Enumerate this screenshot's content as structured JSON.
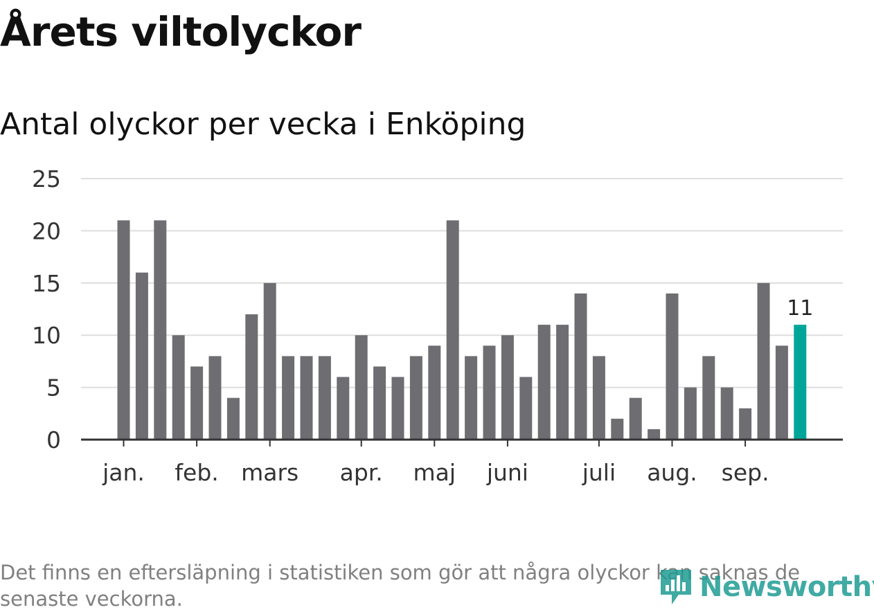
{
  "title": "Årets viltolyckor",
  "subtitle": "Antal olyckor per vecka i Enköping",
  "footnote": "Det finns en eftersläpning i statistiken som gör att några olyckor kan saknas de senaste veckorna.",
  "brand": {
    "name": "Newsworthy",
    "icon": "newsworthy-logo-icon",
    "color": "#1f9c93"
  },
  "colors": {
    "bar": "#6e6d72",
    "highlight": "#00a59a",
    "grid": "#dddddd",
    "axis": "#333333"
  },
  "chart_data": {
    "type": "bar",
    "values": [
      21,
      16,
      21,
      10,
      7,
      8,
      4,
      12,
      15,
      8,
      8,
      8,
      6,
      10,
      7,
      6,
      8,
      9,
      21,
      8,
      9,
      10,
      6,
      11,
      11,
      14,
      8,
      2,
      4,
      1,
      14,
      5,
      8,
      5,
      3,
      15,
      9,
      11
    ],
    "highlight_last": true,
    "highlight_label": "11",
    "month_labels": [
      {
        "label": "jan.",
        "at_bar": 0
      },
      {
        "label": "feb.",
        "at_bar": 4
      },
      {
        "label": "mars",
        "at_bar": 8
      },
      {
        "label": "apr.",
        "at_bar": 13
      },
      {
        "label": "maj",
        "at_bar": 17
      },
      {
        "label": "juni",
        "at_bar": 21
      },
      {
        "label": "juli",
        "at_bar": 26
      },
      {
        "label": "aug.",
        "at_bar": 30
      },
      {
        "label": "sep.",
        "at_bar": 34
      }
    ],
    "yticks": [
      0,
      5,
      10,
      15,
      20,
      25
    ],
    "ylim": [
      0,
      25
    ],
    "grid": true
  }
}
